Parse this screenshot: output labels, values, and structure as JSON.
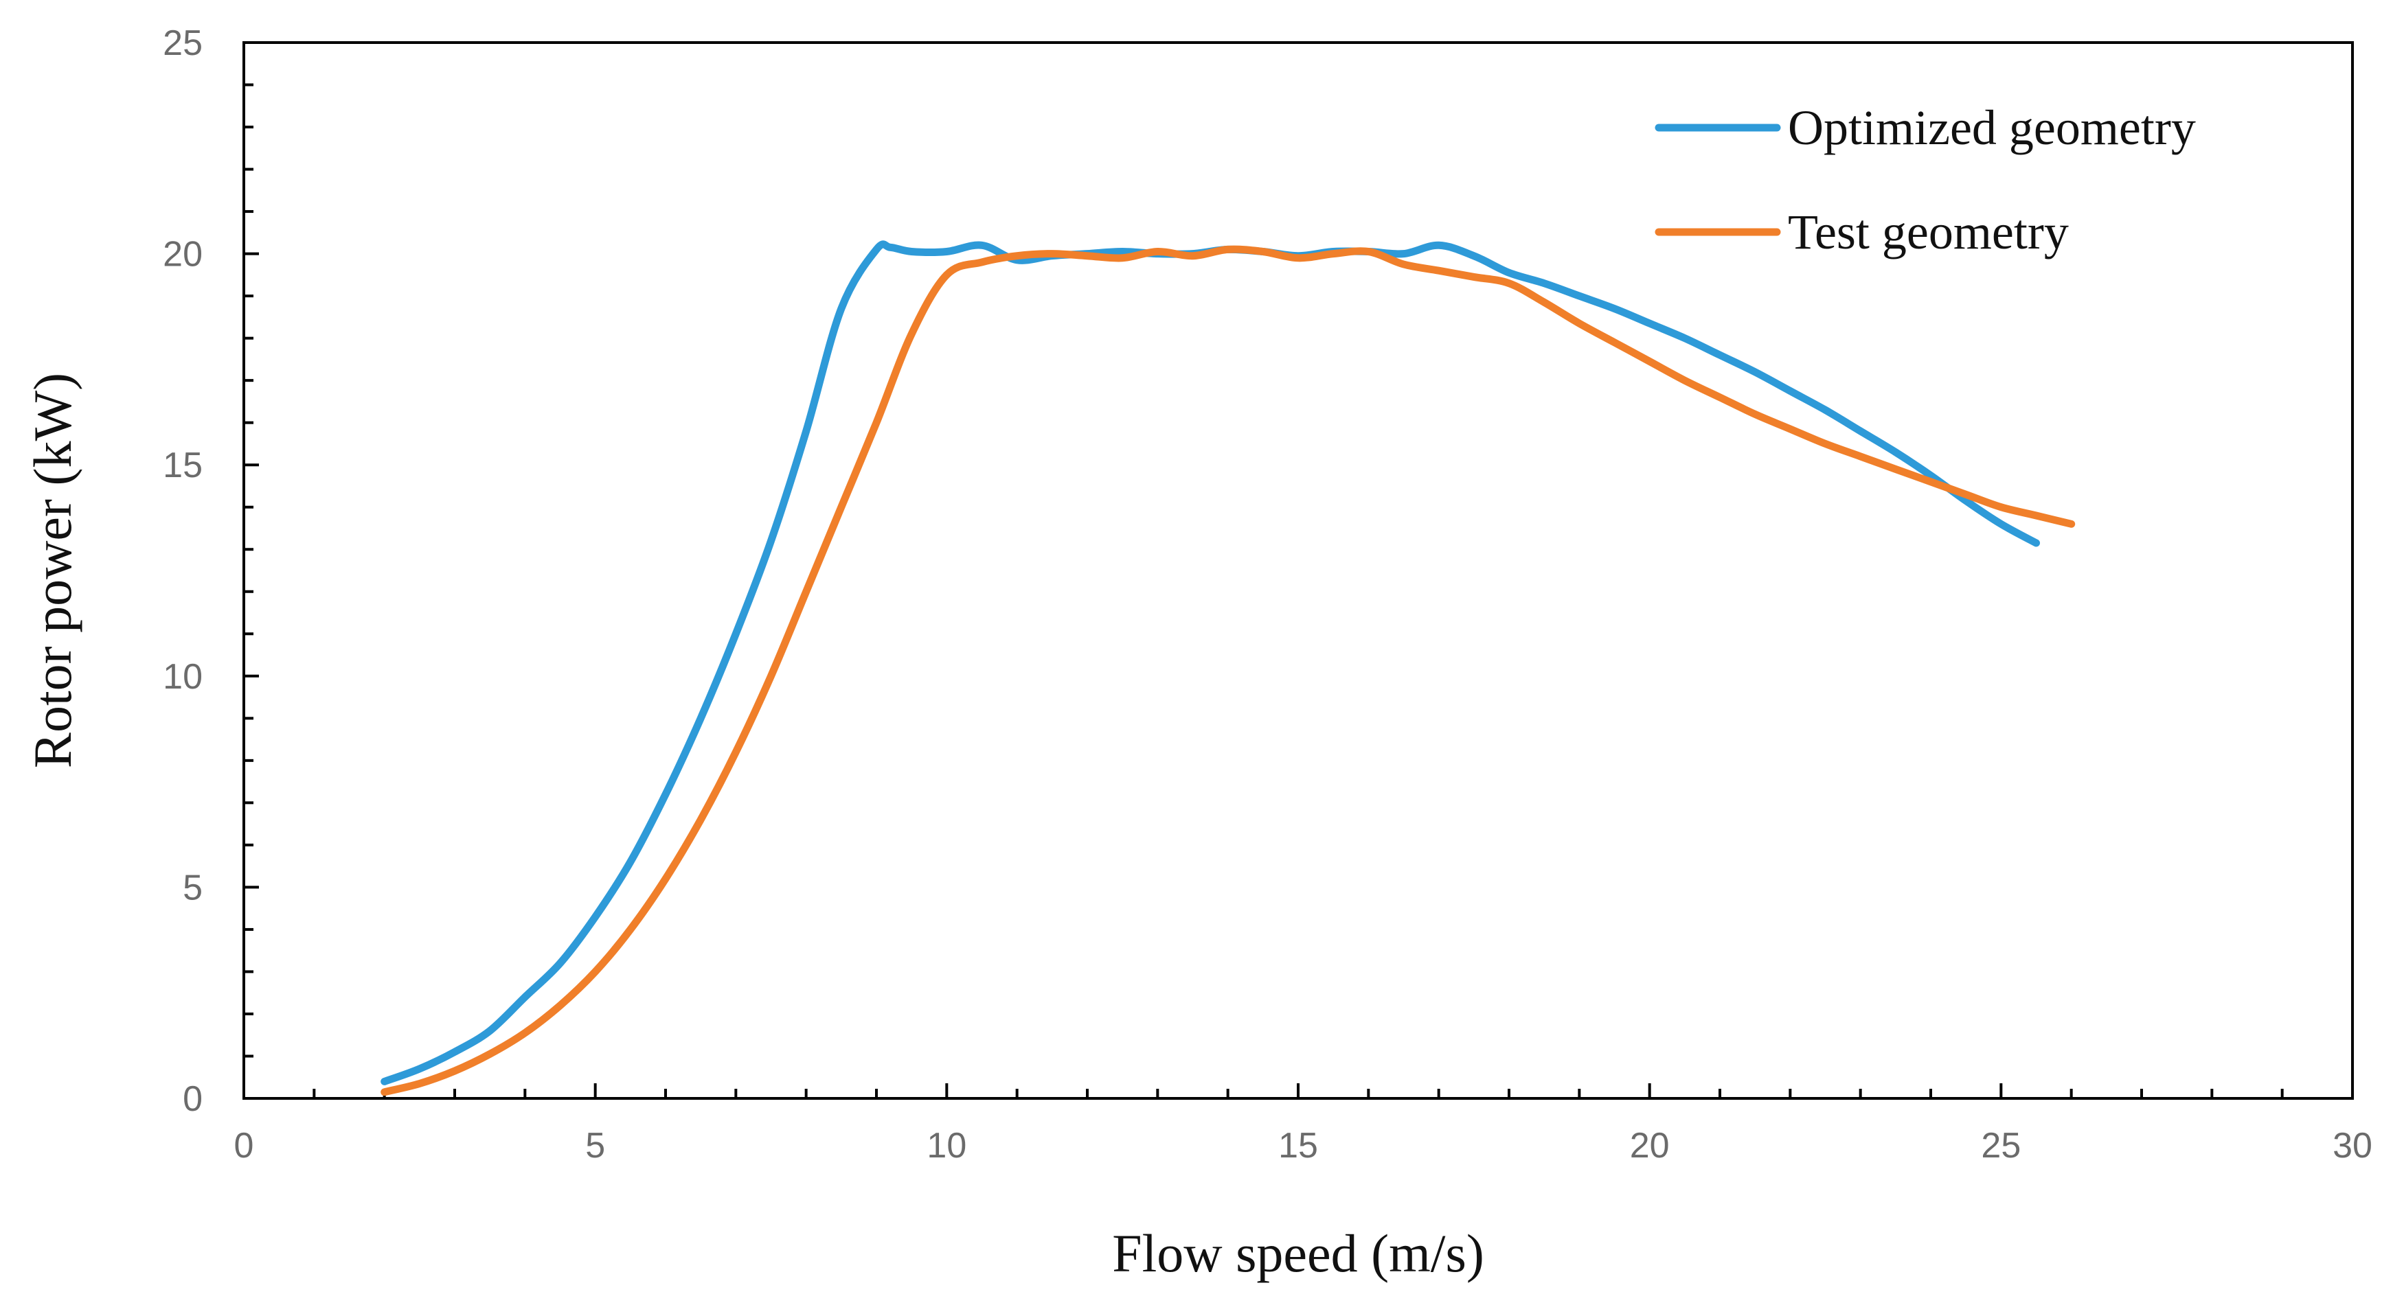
{
  "chart_data": {
    "type": "line",
    "title": "",
    "xlabel": "Flow speed (m/s)",
    "ylabel": "Rotor power (kW)",
    "xlim": [
      0,
      30
    ],
    "ylim": [
      0,
      25
    ],
    "x_ticks": [
      0,
      5,
      10,
      15,
      20,
      25,
      30
    ],
    "y_ticks": [
      0,
      5,
      10,
      15,
      20,
      25
    ],
    "x_minor_step": 1,
    "y_minor_step": 1,
    "grid": false,
    "legend_position": "top-right",
    "series": [
      {
        "name": "Optimized geometry",
        "color": "#2E9AD8",
        "x": [
          2,
          2.5,
          3,
          3.5,
          4,
          4.5,
          5,
          5.5,
          6,
          6.5,
          7,
          7.5,
          8,
          8.5,
          9,
          9.2,
          9.5,
          10,
          10.5,
          11,
          11.5,
          12,
          12.5,
          13,
          13.5,
          14,
          14.5,
          15,
          15.5,
          16,
          16.5,
          17,
          17.5,
          18,
          18.5,
          19,
          19.5,
          20,
          20.5,
          21,
          21.5,
          22,
          22.5,
          23,
          23.5,
          24,
          24.5,
          25,
          25.5
        ],
        "y": [
          0.4,
          0.7,
          1.1,
          1.6,
          2.4,
          3.2,
          4.3,
          5.6,
          7.2,
          9.0,
          11.0,
          13.2,
          15.8,
          18.7,
          20.1,
          20.15,
          20.05,
          20.05,
          20.2,
          19.85,
          19.95,
          20.0,
          20.05,
          20.0,
          20.0,
          20.1,
          20.05,
          19.95,
          20.05,
          20.05,
          20.0,
          20.2,
          19.95,
          19.55,
          19.3,
          19.0,
          18.7,
          18.35,
          18.0,
          17.6,
          17.2,
          16.75,
          16.3,
          15.8,
          15.3,
          14.75,
          14.15,
          13.6,
          13.15
        ]
      },
      {
        "name": "Test geometry",
        "color": "#F07F2A",
        "x": [
          2,
          2.5,
          3,
          3.5,
          4,
          4.5,
          5,
          5.5,
          6,
          6.5,
          7,
          7.5,
          8,
          8.5,
          9,
          9.5,
          10,
          10.5,
          11,
          11.5,
          12,
          12.5,
          13,
          13.5,
          14,
          14.5,
          15,
          15.5,
          16,
          16.5,
          17,
          17.5,
          18,
          18.5,
          19,
          19.5,
          20,
          20.5,
          21,
          21.5,
          22,
          22.5,
          23,
          23.5,
          24,
          24.5,
          25,
          25.5,
          26
        ],
        "y": [
          0.15,
          0.35,
          0.65,
          1.05,
          1.55,
          2.2,
          3.0,
          4.0,
          5.2,
          6.6,
          8.2,
          10.0,
          12.0,
          14.0,
          16.0,
          18.1,
          19.5,
          19.8,
          19.95,
          20.0,
          19.95,
          19.9,
          20.05,
          19.95,
          20.1,
          20.05,
          19.9,
          20.0,
          20.05,
          19.75,
          19.6,
          19.45,
          19.3,
          18.85,
          18.35,
          17.9,
          17.45,
          17.0,
          16.6,
          16.2,
          15.85,
          15.5,
          15.2,
          14.9,
          14.6,
          14.3,
          14.0,
          13.8,
          13.6
        ]
      }
    ]
  }
}
